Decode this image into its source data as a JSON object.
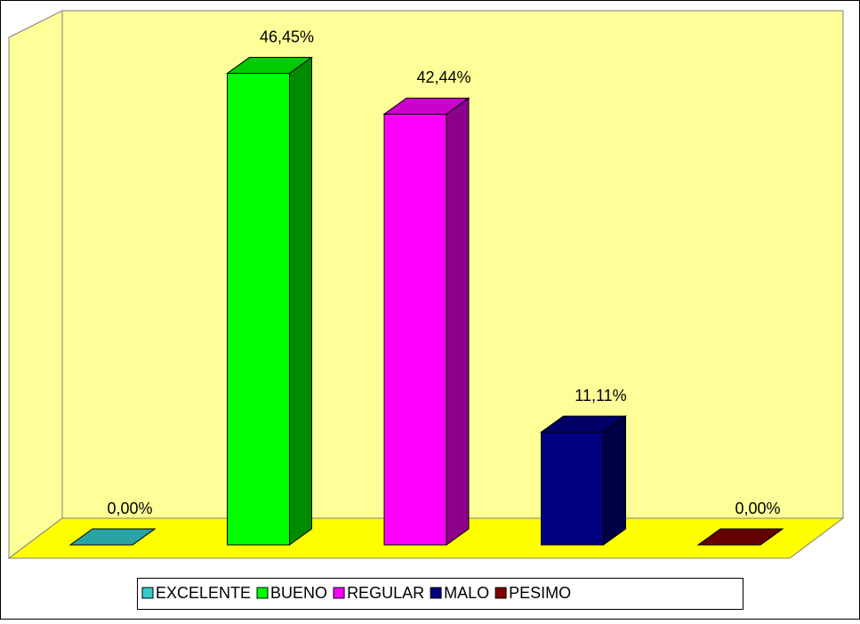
{
  "chart_data": {
    "type": "bar3d",
    "categories": [
      "EXCELENTE",
      "BUENO",
      "REGULAR",
      "MALO",
      "PESIMO"
    ],
    "values": [
      0,
      46.45,
      42.44,
      11.11,
      0
    ],
    "value_labels": [
      "0,00%",
      "46,45%",
      "42,44%",
      "11,11%",
      "0,00%"
    ],
    "colors": [
      "#33cccc",
      "#00ff00",
      "#ff00ff",
      "#000080",
      "#800000"
    ],
    "ylim": [
      0,
      50
    ],
    "legend": "bottom"
  }
}
